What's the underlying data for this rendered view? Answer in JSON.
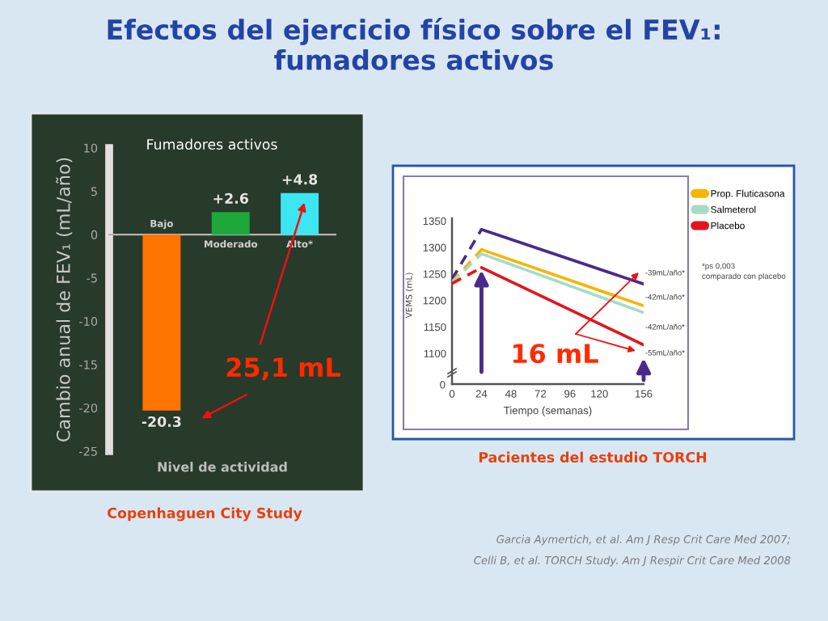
{
  "chart_data": [
    {
      "type": "bar",
      "title": "Efectos del ejercicio físico sobre el FEV₁: fumadores activos",
      "subtitle": "Fumadores activos",
      "ylabel": "Cambio anual de FEV₁ (mL/año)",
      "xlabel": "Nivel de actividad",
      "categories": [
        "Bajo",
        "Moderado",
        "Alto*"
      ],
      "values": [
        -20.3,
        2.6,
        4.8
      ],
      "colors": [
        "#ff7300",
        "#1ea83a",
        "#3ce6f2"
      ],
      "value_labels": [
        "-20.3",
        "+2.6",
        "+4.8"
      ],
      "ylim": [
        -25,
        10
      ],
      "yticks": [
        -25,
        -20,
        -15,
        -10,
        -5,
        0,
        5,
        10
      ],
      "annotations": [
        "25,1 mL",
        "Copenhaguen City Study"
      ]
    },
    {
      "type": "line",
      "title": "Pacientes del estudio TORCH",
      "xlabel": "Tiempo (semanas)",
      "ylabel": "VEMS (mL)",
      "xlim": [
        0,
        156
      ],
      "xticks": [
        0,
        24,
        48,
        72,
        96,
        120,
        156
      ],
      "ylim": [
        1065,
        1355
      ],
      "yticks": [
        1100,
        1150,
        1200,
        1250,
        1300,
        1350
      ],
      "legend": "top right",
      "series": [
        {
          "color": "#4a2a8c",
          "line_style": "dashed",
          "x": [
            0,
            24
          ],
          "values": [
            1240,
            1334
          ]
        },
        {
          "color": "#4a2a8c",
          "line_style": "solid",
          "x": [
            24,
            156
          ],
          "values": [
            1334,
            1231
          ]
        },
        {
          "color": "#f7b500",
          "line_style": "dashed",
          "x": [
            0,
            24
          ],
          "values": [
            1235,
            1296
          ]
        },
        {
          "name": "Prop. Fluticasona",
          "color": "#f7b500",
          "line_style": "solid",
          "x": [
            24,
            156
          ],
          "values": [
            1296,
            1190
          ]
        },
        {
          "color": "#a6dcc6",
          "line_style": "dashed",
          "x": [
            0,
            24
          ],
          "values": [
            1233,
            1288
          ]
        },
        {
          "name": "Salmeterol",
          "color": "#a6dcc6",
          "line_style": "solid",
          "x": [
            24,
            156
          ],
          "values": [
            1288,
            1177
          ]
        },
        {
          "color": "#e3151d",
          "line_style": "dashed",
          "x": [
            0,
            24
          ],
          "values": [
            1232,
            1262
          ]
        },
        {
          "name": "Placebo",
          "color": "#e3151d",
          "line_style": "solid",
          "x": [
            24,
            156
          ],
          "values": [
            1262,
            1116
          ]
        }
      ],
      "annotations": [
        "0",
        "-39mL/año*",
        "-42mL/año*",
        "-42mL/año*",
        "-55mL/año*",
        "16 mL",
        "*ps 0,003\ncomparado con placebo",
        "Garcia Aymertich, et al. Am J Resp Crit Care Med 2007;",
        "Celli B, et al. TORCH Study. Am J Respir Crit Care Med 2008"
      ]
    }
  ]
}
